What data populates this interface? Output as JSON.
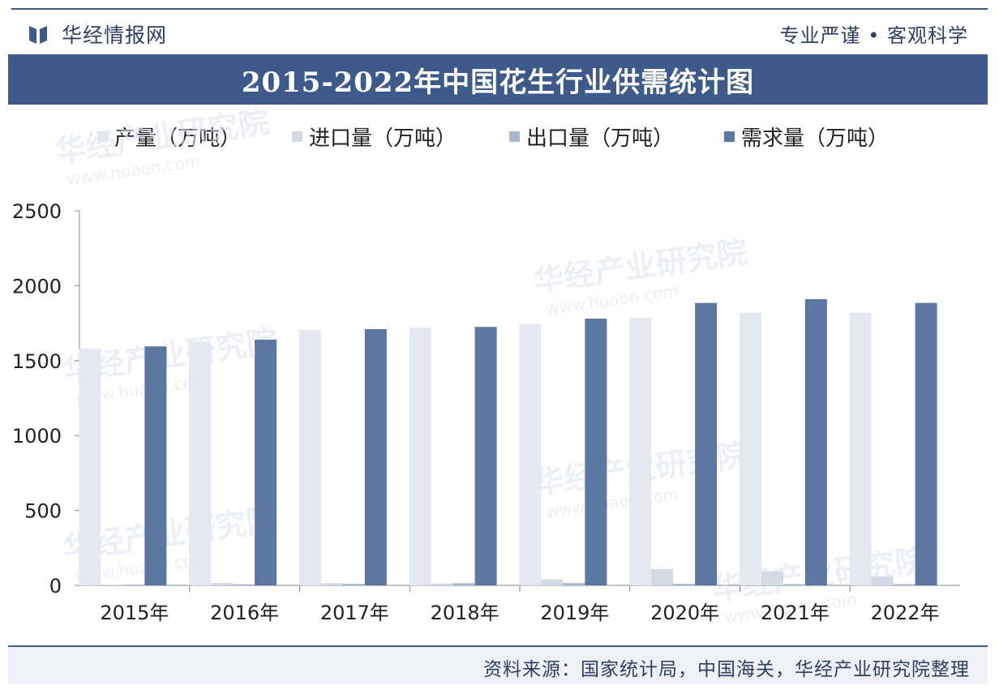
{
  "header": {
    "brand": "华经情报网",
    "slogan": "专业严谨 • 客观科学"
  },
  "title": "2015-2022年中国花生行业供需统计图",
  "watermarks": [
    "华经产业研究院",
    "www.huaon.com"
  ],
  "source": "资料来源：国家统计局，中国海关，华经产业研究院整理",
  "colors": {
    "header_blue": "#3d5a8a",
    "production": "#e4e8f0",
    "import": "#d3dae6",
    "export": "#a9b6cc",
    "demand": "#5d77a3"
  },
  "chart_data": {
    "type": "bar",
    "title": "2015-2022年中国花生行业供需统计图",
    "categories": [
      "2015年",
      "2016年",
      "2017年",
      "2018年",
      "2019年",
      "2020年",
      "2021年",
      "2022年"
    ],
    "series": [
      {
        "name": "产量（万吨）",
        "values": [
          1580,
          1625,
          1705,
          1720,
          1745,
          1785,
          1820,
          1820
        ],
        "color": "#e4e8f0"
      },
      {
        "name": "进口量（万吨）",
        "values": [
          5,
          16,
          14,
          12,
          40,
          108,
          95,
          60
        ],
        "color": "#d3dae6"
      },
      {
        "name": "出口量（万吨）",
        "values": [
          5,
          7,
          10,
          14,
          15,
          10,
          8,
          8
        ],
        "color": "#a9b6cc"
      },
      {
        "name": "需求量（万吨）",
        "values": [
          1595,
          1640,
          1710,
          1725,
          1780,
          1885,
          1910,
          1885
        ],
        "color": "#5d77a3"
      }
    ],
    "yticks": [
      "0",
      "500",
      "1000",
      "1500",
      "2000",
      "2500"
    ],
    "ylim": [
      0,
      2500
    ],
    "grid": false,
    "legend_position": "top"
  }
}
